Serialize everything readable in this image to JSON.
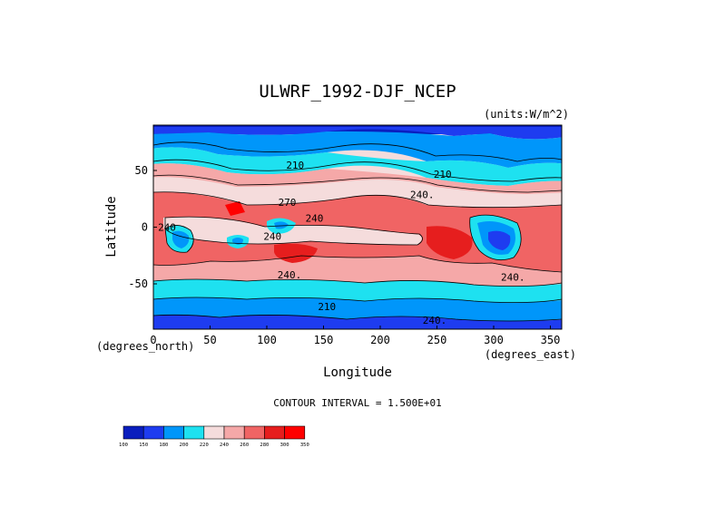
{
  "chart_data": {
    "type": "heatmap",
    "title": "ULWRF_1992-DJF_NCEP",
    "units": "(units:W/m^2)",
    "xlabel": "Longitude",
    "ylabel": "Latitude",
    "x_unit": "(degrees_east)",
    "y_unit": "(degrees_north)",
    "xlim": [
      0,
      360
    ],
    "ylim": [
      -90,
      90
    ],
    "x_ticks": [
      0,
      50,
      100,
      150,
      200,
      250,
      300,
      350
    ],
    "y_ticks": [
      -50,
      0,
      50
    ],
    "contour_interval": "CONTOUR INTERVAL = 1.500E+01",
    "colorbar": {
      "levels": [
        100,
        150,
        180,
        200,
        220,
        240,
        260,
        280,
        300,
        350
      ],
      "colors": [
        "#0a1ebe",
        "#1e3cf0",
        "#0096fa",
        "#1ee1f0",
        "#f5dcdc",
        "#f5a8a8",
        "#f06464",
        "#e61e1e",
        "#ff0000"
      ]
    },
    "contour_labels": [
      {
        "text": "210",
        "lon": 125,
        "lat": 55
      },
      {
        "text": "210",
        "lon": 255,
        "lat": 47
      },
      {
        "text": "240.",
        "lon": 237,
        "lat": 29
      },
      {
        "text": "270",
        "lon": 118,
        "lat": 22
      },
      {
        "text": "240",
        "lon": 12,
        "lat": 0
      },
      {
        "text": "240",
        "lon": 142,
        "lat": 8
      },
      {
        "text": "240",
        "lon": 105,
        "lat": -8
      },
      {
        "text": "240.",
        "lon": 120,
        "lat": -42
      },
      {
        "text": "240.",
        "lon": 317,
        "lat": -44
      },
      {
        "text": "210",
        "lon": 153,
        "lat": -70
      },
      {
        "text": "240.",
        "lon": 248,
        "lat": -82
      }
    ]
  }
}
